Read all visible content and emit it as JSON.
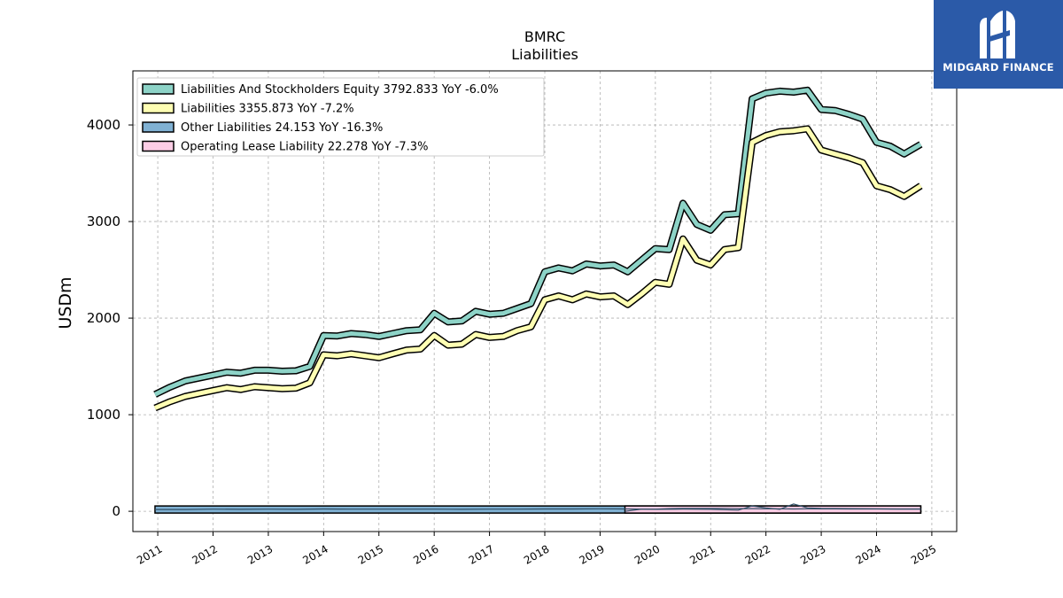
{
  "brand": {
    "name": "MIDGARD FINANCE",
    "color": "#2b5aa8"
  },
  "chart_data": {
    "type": "line",
    "title": "BMRC",
    "subtitle": "Liabilities",
    "xlabel": "",
    "ylabel": "USDm",
    "xlim": [
      2010.55,
      2025.45
    ],
    "ylim": [
      -210,
      4560
    ],
    "yticks": [
      0,
      1000,
      2000,
      3000,
      4000
    ],
    "xticks": [
      "2011",
      "2012",
      "2013",
      "2014",
      "2015",
      "2016",
      "2017",
      "2018",
      "2019",
      "2020",
      "2021",
      "2022",
      "2023",
      "2024",
      "2025"
    ],
    "grid": true,
    "legend_position": "top-left",
    "series": [
      {
        "name": "Liabilities And Stockholders Equity",
        "legend_label": "Liabilities And Stockholders Equity  3792.833 YoY -6.0%",
        "color": "#8dd3c7",
        "x": [
          2010.95,
          2011.2,
          2011.5,
          2011.75,
          2012.0,
          2012.25,
          2012.5,
          2012.75,
          2013.0,
          2013.25,
          2013.5,
          2013.75,
          2014.0,
          2014.25,
          2014.5,
          2014.75,
          2015.0,
          2015.25,
          2015.5,
          2015.75,
          2016.0,
          2016.25,
          2016.5,
          2016.75,
          2017.0,
          2017.25,
          2017.5,
          2017.75,
          2018.0,
          2018.25,
          2018.5,
          2018.75,
          2019.0,
          2019.25,
          2019.5,
          2019.75,
          2020.0,
          2020.25,
          2020.5,
          2020.75,
          2021.0,
          2021.25,
          2021.5,
          2021.75,
          2022.0,
          2022.25,
          2022.5,
          2022.75,
          2023.0,
          2023.25,
          2023.5,
          2023.75,
          2024.0,
          2024.25,
          2024.5,
          2024.8
        ],
        "values": [
          1210,
          1280,
          1350,
          1380,
          1410,
          1440,
          1430,
          1460,
          1460,
          1450,
          1455,
          1500,
          1820,
          1815,
          1840,
          1830,
          1810,
          1840,
          1870,
          1880,
          2050,
          1960,
          1970,
          2070,
          2040,
          2050,
          2100,
          2150,
          2480,
          2520,
          2490,
          2560,
          2540,
          2550,
          2480,
          2600,
          2720,
          2710,
          3190,
          2970,
          2910,
          3070,
          3080,
          4270,
          4330,
          4350,
          4340,
          4360,
          4160,
          4150,
          4110,
          4060,
          3820,
          3780,
          3700,
          3800
        ]
      },
      {
        "name": "Liabilities",
        "legend_label": "Liabilities  3355.873 YoY -7.2%",
        "color": "#ffffb3",
        "x": [
          2010.95,
          2011.2,
          2011.5,
          2011.75,
          2012.0,
          2012.25,
          2012.5,
          2012.75,
          2013.0,
          2013.25,
          2013.5,
          2013.75,
          2014.0,
          2014.25,
          2014.5,
          2014.75,
          2015.0,
          2015.25,
          2015.5,
          2015.75,
          2016.0,
          2016.25,
          2016.5,
          2016.75,
          2017.0,
          2017.25,
          2017.5,
          2017.75,
          2018.0,
          2018.25,
          2018.5,
          2018.75,
          2019.0,
          2019.25,
          2019.5,
          2019.75,
          2020.0,
          2020.25,
          2020.5,
          2020.75,
          2021.0,
          2021.25,
          2021.5,
          2021.75,
          2022.0,
          2022.25,
          2022.5,
          2022.75,
          2023.0,
          2023.25,
          2023.5,
          2023.75,
          2024.0,
          2024.25,
          2024.5,
          2024.8
        ],
        "values": [
          1070,
          1130,
          1190,
          1220,
          1250,
          1280,
          1260,
          1290,
          1280,
          1270,
          1275,
          1330,
          1620,
          1610,
          1630,
          1610,
          1590,
          1630,
          1670,
          1680,
          1820,
          1720,
          1730,
          1830,
          1800,
          1810,
          1870,
          1910,
          2190,
          2230,
          2190,
          2250,
          2220,
          2230,
          2140,
          2250,
          2370,
          2350,
          2820,
          2600,
          2550,
          2710,
          2730,
          3820,
          3890,
          3930,
          3940,
          3960,
          3740,
          3700,
          3660,
          3610,
          3370,
          3330,
          3260,
          3370
        ]
      },
      {
        "name": "Other Liabilities",
        "legend_label": "Other Liabilities  24.153 YoY -16.3%",
        "color": "#80b1d3",
        "x": [
          2010.95,
          2011.5,
          2012.0,
          2012.5,
          2013.0,
          2013.5,
          2014.0,
          2014.5,
          2015.0,
          2015.5,
          2016.0,
          2016.5,
          2017.0,
          2017.5,
          2018.0,
          2018.5,
          2019.0,
          2019.5,
          2020.0,
          2020.5,
          2021.0,
          2021.5,
          2021.75,
          2022.0,
          2022.25,
          2022.5,
          2022.75,
          2023.0,
          2023.5,
          2024.0,
          2024.5,
          2024.8
        ],
        "values": [
          18,
          18,
          22,
          20,
          22,
          20,
          24,
          22,
          22,
          22,
          22,
          20,
          22,
          22,
          24,
          24,
          26,
          24,
          20,
          22,
          20,
          12,
          55,
          35,
          20,
          75,
          35,
          30,
          28,
          26,
          24,
          24
        ]
      },
      {
        "name": "Operating Lease Liability",
        "legend_label": "Operating Lease Liability  22.278 YoY -7.3%",
        "color": "#fccde5",
        "x": [
          2019.45,
          2019.75,
          2020.0,
          2020.25,
          2020.5,
          2020.75,
          2021.0,
          2021.25,
          2021.5,
          2021.75,
          2022.0,
          2022.25,
          2022.5,
          2022.75,
          2023.0,
          2023.25,
          2023.5,
          2023.75,
          2024.0,
          2024.25,
          2024.5,
          2024.8
        ],
        "values": [
          0,
          22,
          22,
          28,
          30,
          30,
          30,
          30,
          28,
          28,
          26,
          26,
          24,
          26,
          25,
          25,
          24,
          24,
          24,
          23,
          23,
          22
        ]
      }
    ]
  }
}
